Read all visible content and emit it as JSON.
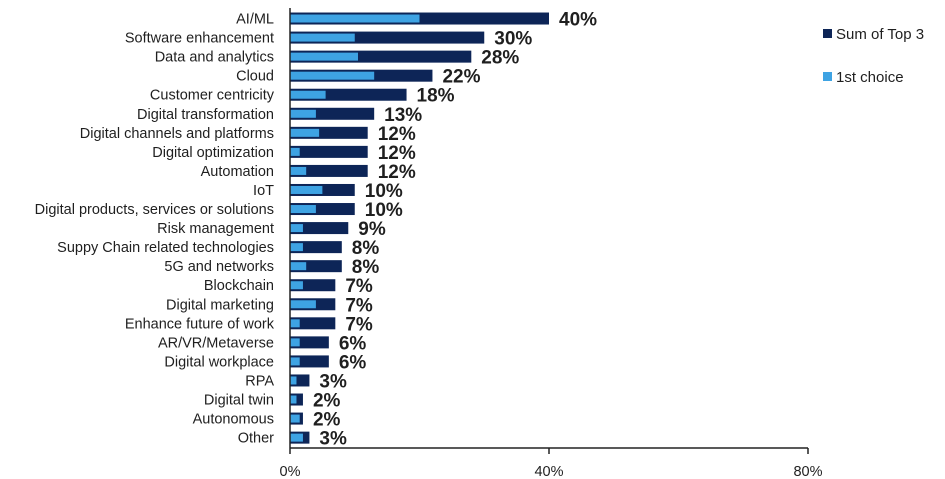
{
  "chart_data": {
    "type": "bar",
    "orientation": "horizontal",
    "categories": [
      "AI/ML",
      "Software enhancement",
      "Data and analytics",
      "Cloud",
      "Customer centricity",
      "Digital transformation",
      "Digital channels and platforms",
      "Digital optimization",
      "Automation",
      "IoT",
      "Digital products, services or solutions",
      "Risk management",
      "Suppy Chain related technologies",
      "5G and networks",
      "Blockchain",
      "Digital marketing",
      "Enhance future of work",
      "AR/VR/Metaverse",
      "Digital workplace",
      "RPA",
      "Digital twin",
      "Autonomous",
      "Other"
    ],
    "series": [
      {
        "name": "Sum of Top 3",
        "color": "#0d2557",
        "values": [
          40,
          30,
          28,
          22,
          18,
          13,
          12,
          12,
          12,
          10,
          10,
          9,
          8,
          8,
          7,
          7,
          7,
          6,
          6,
          3,
          2,
          2,
          3
        ]
      },
      {
        "name": "1st choice",
        "color": "#3ea3e3",
        "values": [
          20,
          10,
          10.5,
          13,
          5.5,
          4,
          4.5,
          1.5,
          2.5,
          5,
          4,
          2,
          2,
          2.5,
          2,
          4,
          1.5,
          1.5,
          1.5,
          1,
          1,
          1.5,
          2
        ]
      }
    ],
    "value_labels": [
      "40%",
      "30%",
      "28%",
      "22%",
      "18%",
      "13%",
      "12%",
      "12%",
      "12%",
      "10%",
      "10%",
      "9%",
      "8%",
      "8%",
      "7%",
      "7%",
      "7%",
      "6%",
      "6%",
      "3%",
      "2%",
      "2%",
      "3%"
    ],
    "x_ticks": [
      0,
      40,
      80
    ],
    "x_tick_labels": [
      "0%",
      "40%",
      "80%"
    ],
    "xlim": [
      0,
      80
    ],
    "legend_position": "right",
    "grid": false
  }
}
